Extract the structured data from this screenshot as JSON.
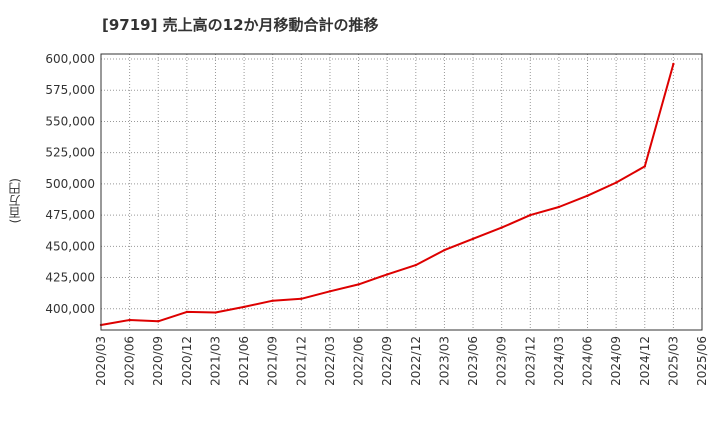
{
  "chart_data": {
    "type": "line",
    "title": "[9719]  売上高の12か月移動合計の推移",
    "ylabel": "(百万円)",
    "xlabel": "",
    "x_ticks": [
      "2020/03",
      "2020/06",
      "2020/09",
      "2020/12",
      "2021/03",
      "2021/06",
      "2021/09",
      "2021/12",
      "2022/03",
      "2022/06",
      "2022/09",
      "2022/12",
      "2023/03",
      "2023/06",
      "2023/09",
      "2023/12",
      "2024/03",
      "2024/06",
      "2024/09",
      "2024/12",
      "2025/03",
      "2025/06"
    ],
    "y_ticks": [
      "400,000",
      "425,000",
      "450,000",
      "475,000",
      "500,000",
      "525,000",
      "550,000",
      "575,000",
      "600,000"
    ],
    "y_tick_values": [
      400000,
      425000,
      450000,
      475000,
      500000,
      525000,
      550000,
      575000,
      600000
    ],
    "ylim": [
      383000,
      604000
    ],
    "grid": true,
    "series": [
      {
        "name": "売上高",
        "color": "#dd0000",
        "x": [
          "2020/03",
          "2020/06",
          "2020/09",
          "2020/12",
          "2021/03",
          "2021/06",
          "2021/09",
          "2021/12",
          "2022/03",
          "2022/06",
          "2022/09",
          "2022/12",
          "2023/03",
          "2023/06",
          "2023/09",
          "2023/12",
          "2024/03",
          "2024/06",
          "2024/09",
          "2024/12",
          "2025/03"
        ],
        "values": [
          387000,
          391000,
          390000,
          397500,
          397000,
          401500,
          406500,
          408000,
          414000,
          419500,
          427500,
          435000,
          447000,
          456000,
          465000,
          475000,
          481500,
          490500,
          501000,
          514000,
          596000
        ]
      }
    ]
  }
}
